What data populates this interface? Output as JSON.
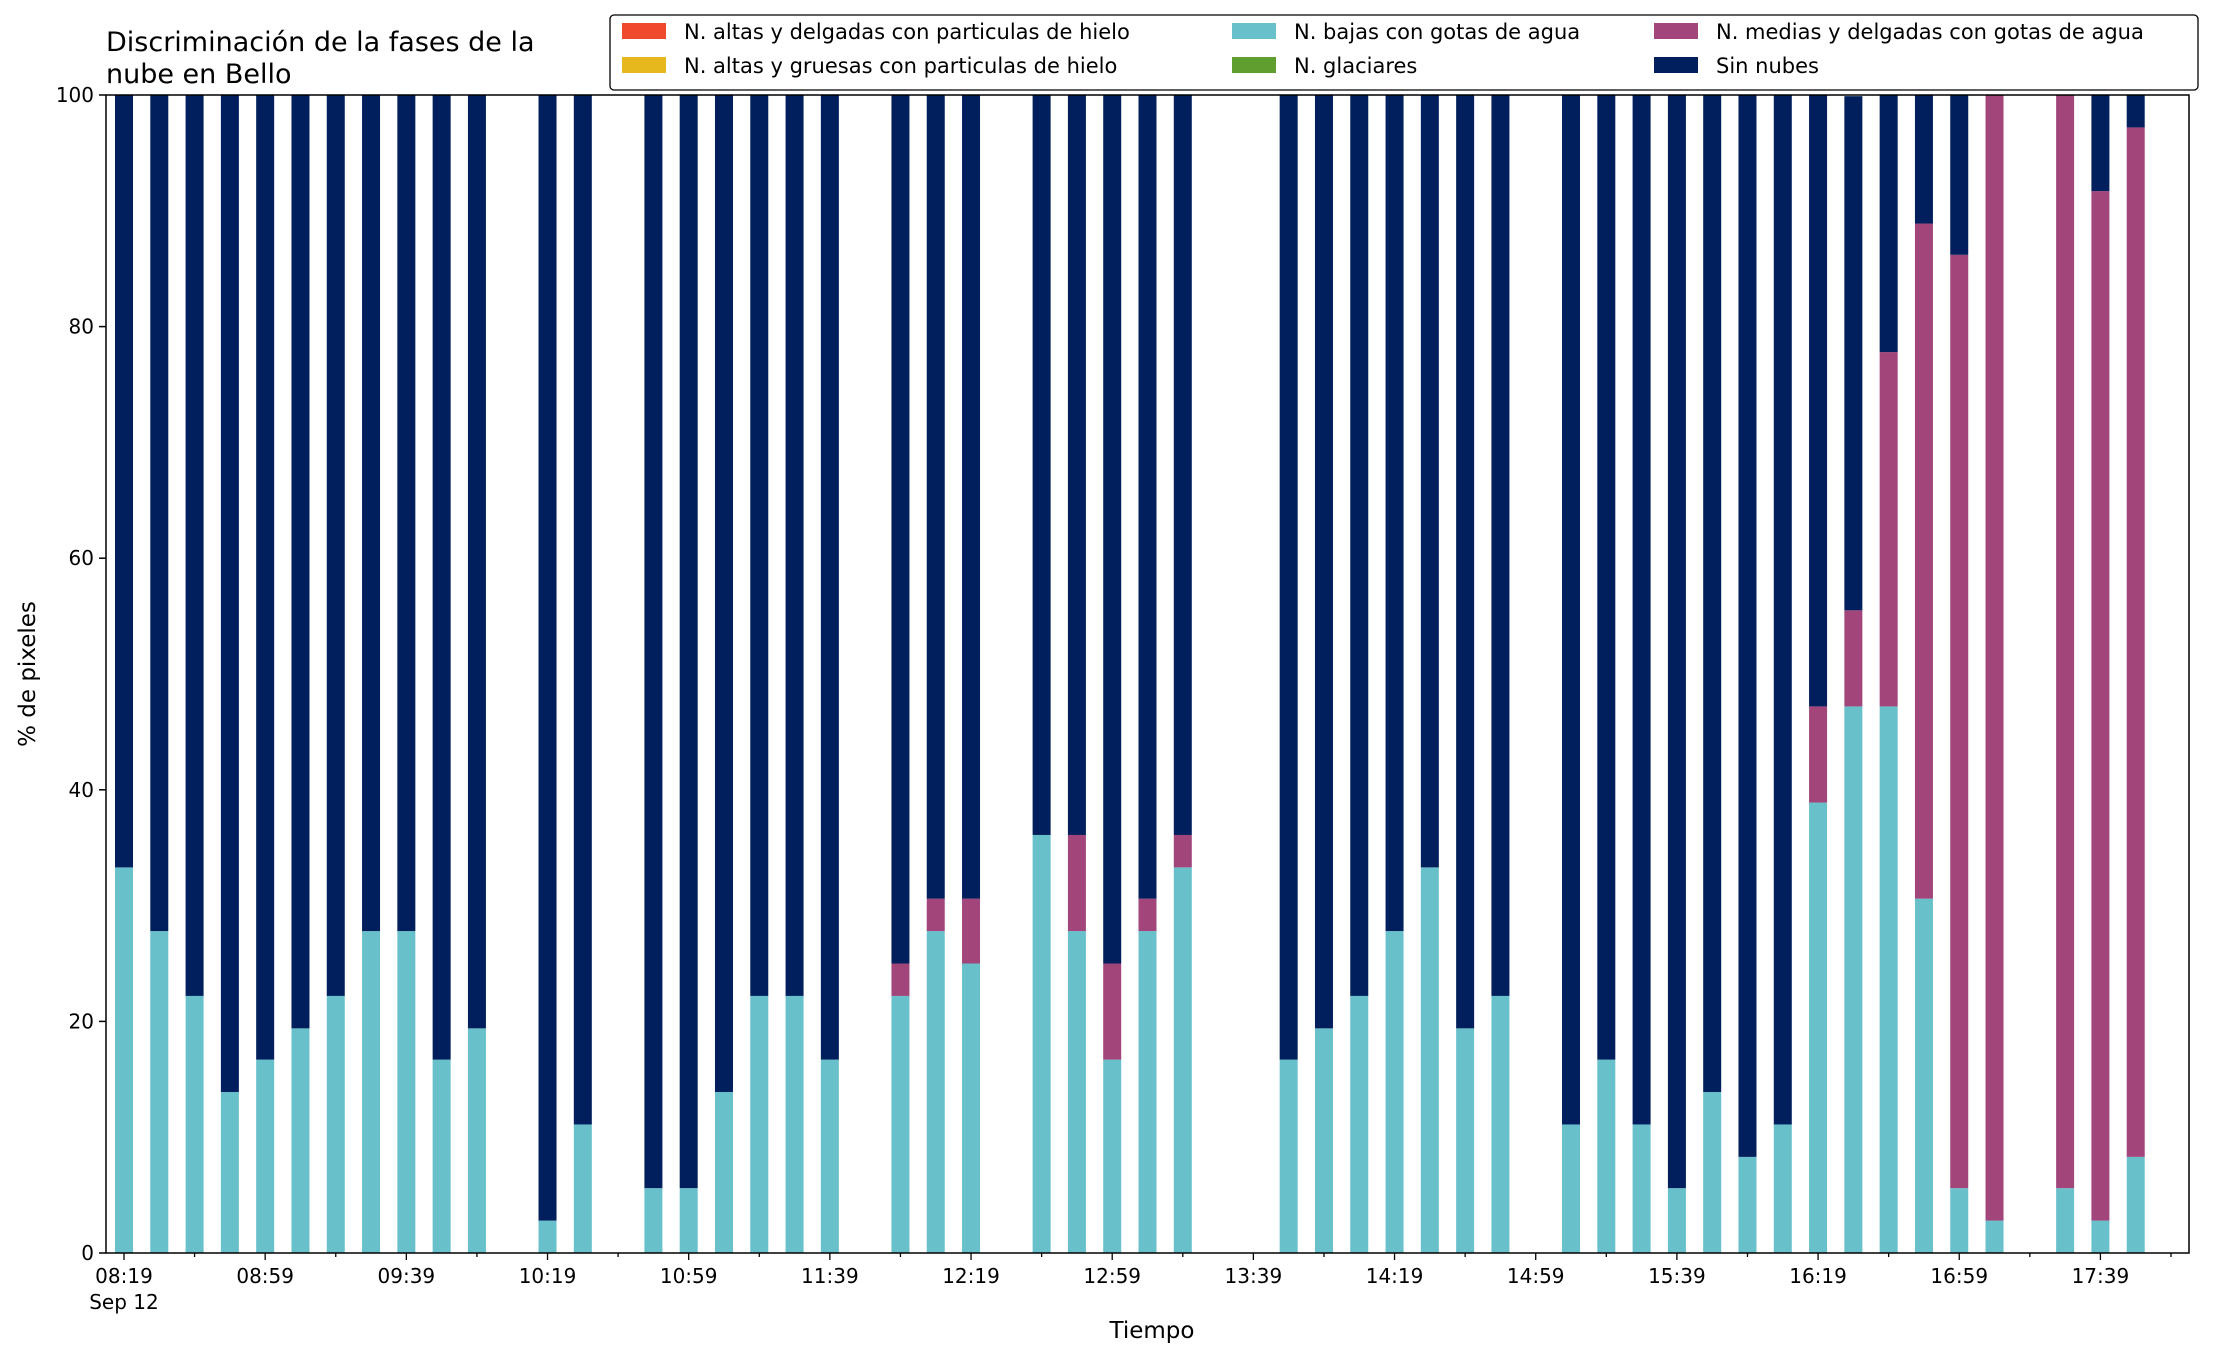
{
  "chart_data": {
    "type": "bar",
    "stacked": true,
    "title": "Discriminación de la fases de la\nnube en Bello",
    "xlabel": "Tiempo",
    "ylabel": "% de pixeles",
    "ylim": [
      0,
      100
    ],
    "yticks": [
      0,
      20,
      40,
      60,
      80,
      100
    ],
    "grid": false,
    "legend_position": "top-right",
    "x_start_time": "08:19",
    "x_end_time": "17:59",
    "x_interval_minutes": 10,
    "x_tick_labels": [
      "08:19",
      "08:59",
      "09:39",
      "10:19",
      "10:59",
      "11:39",
      "12:19",
      "12:59",
      "13:39",
      "14:19",
      "14:59",
      "15:39",
      "16:19",
      "16:59",
      "17:39"
    ],
    "x_date_label": "Sep 12",
    "categories": [
      "08:19",
      "08:29",
      "08:39",
      "08:49",
      "08:59",
      "09:09",
      "09:19",
      "09:29",
      "09:39",
      "09:49",
      "09:59",
      "10:09",
      "10:19",
      "10:29",
      "10:39",
      "10:49",
      "10:59",
      "11:09",
      "11:19",
      "11:29",
      "11:39",
      "11:49",
      "11:59",
      "12:09",
      "12:19",
      "12:29",
      "12:39",
      "12:49",
      "12:59",
      "13:09",
      "13:19",
      "13:29",
      "13:39",
      "13:49",
      "13:59",
      "14:09",
      "14:19",
      "14:29",
      "14:39",
      "14:49",
      "14:59",
      "15:09",
      "15:19",
      "15:29",
      "15:39",
      "15:49",
      "15:59",
      "16:09",
      "16:19",
      "16:29",
      "16:39",
      "16:49",
      "16:59",
      "17:09",
      "17:19",
      "17:29",
      "17:39",
      "17:49"
    ],
    "series": [
      {
        "name": "N. altas y delgadas con particulas de hielo",
        "color": "#ee4a2b",
        "values": [
          0,
          0,
          0,
          0,
          0,
          0,
          0,
          0,
          0,
          0,
          0,
          0,
          0,
          0,
          0,
          0,
          0,
          0,
          0,
          0,
          0,
          0,
          0,
          0,
          0,
          0,
          0,
          0,
          0,
          0,
          0,
          0,
          0,
          0,
          0,
          0,
          0,
          0,
          0,
          0,
          0,
          0,
          0,
          0,
          0,
          0,
          0,
          0,
          0,
          0,
          0,
          0,
          0,
          0,
          0,
          0,
          0,
          0
        ]
      },
      {
        "name": "N. altas y gruesas con particulas de hielo",
        "color": "#e6b81e",
        "values": [
          0,
          0,
          0,
          0,
          0,
          0,
          0,
          0,
          0,
          0,
          0,
          0,
          0,
          0,
          0,
          0,
          0,
          0,
          0,
          0,
          0,
          0,
          0,
          0,
          0,
          0,
          0,
          0,
          0,
          0,
          0,
          0,
          0,
          0,
          0,
          0,
          0,
          0,
          0,
          0,
          0,
          0,
          0,
          0,
          0,
          0,
          0,
          0,
          0,
          0,
          0,
          0,
          0,
          0,
          0,
          0,
          0,
          0
        ]
      },
      {
        "name": "N. bajas con gotas de agua",
        "color": "#68c0cb",
        "values": [
          33.3,
          27.8,
          22.2,
          13.9,
          16.7,
          19.4,
          22.2,
          27.8,
          27.8,
          16.7,
          19.4,
          null,
          2.8,
          11.1,
          null,
          5.6,
          5.6,
          13.9,
          22.2,
          22.2,
          16.7,
          null,
          22.2,
          27.8,
          25.0,
          null,
          36.1,
          27.8,
          16.7,
          27.8,
          33.3,
          null,
          null,
          16.7,
          19.4,
          22.2,
          27.8,
          33.3,
          19.4,
          22.2,
          null,
          11.1,
          16.7,
          11.1,
          5.6,
          13.9,
          8.3,
          11.1,
          38.9,
          47.2,
          47.2,
          30.6,
          5.6,
          2.8,
          null,
          5.6,
          2.8,
          8.3
        ]
      },
      {
        "name": "N. glaciares",
        "color": "#5f9f2f",
        "values": [
          0,
          0,
          0,
          0,
          0,
          0,
          0,
          0,
          0,
          0,
          0,
          null,
          0,
          0,
          null,
          0,
          0,
          0,
          0,
          0,
          0,
          null,
          0,
          0,
          0,
          null,
          0,
          0,
          0,
          0,
          0,
          null,
          null,
          0,
          0,
          0,
          0,
          0,
          0,
          0,
          null,
          0,
          0,
          0,
          0,
          0,
          0,
          0,
          0,
          0,
          0,
          0,
          0,
          0,
          null,
          0,
          0,
          0
        ]
      },
      {
        "name": "N. medias y delgadas con gotas de agua",
        "color": "#a1457a",
        "values": [
          0,
          0,
          0,
          0,
          0,
          0,
          0,
          0,
          0,
          0,
          0,
          null,
          0,
          0,
          null,
          0,
          0,
          0,
          0,
          0,
          0,
          null,
          2.8,
          2.8,
          5.6,
          null,
          0,
          8.3,
          8.3,
          2.8,
          2.8,
          null,
          null,
          0,
          0,
          0,
          0,
          0,
          0,
          0,
          null,
          0,
          0,
          0,
          0,
          0,
          0,
          0,
          8.3,
          8.3,
          30.6,
          58.3,
          80.6,
          97.2,
          null,
          94.4,
          88.9,
          88.9
        ]
      },
      {
        "name": "Sin nubes",
        "color": "#001f5c",
        "values": [
          66.7,
          72.2,
          77.8,
          86.1,
          83.3,
          80.6,
          77.8,
          72.2,
          72.2,
          83.3,
          80.6,
          null,
          97.2,
          88.9,
          null,
          94.4,
          94.4,
          86.1,
          77.8,
          77.8,
          83.3,
          null,
          75.0,
          69.4,
          69.4,
          null,
          63.9,
          63.9,
          75.0,
          69.4,
          63.9,
          null,
          null,
          83.3,
          80.6,
          77.8,
          72.2,
          66.7,
          80.6,
          77.8,
          null,
          88.9,
          83.3,
          88.9,
          94.4,
          86.1,
          91.7,
          88.9,
          52.8,
          44.4,
          22.2,
          11.1,
          13.8,
          0,
          null,
          0,
          8.3,
          2.8
        ]
      }
    ]
  }
}
